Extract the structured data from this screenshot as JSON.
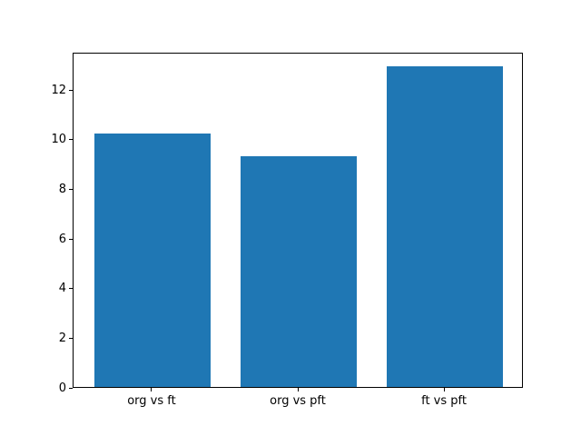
{
  "chart_data": {
    "type": "bar",
    "categories": [
      "org vs ft",
      "org vs pft",
      "ft vs pft"
    ],
    "values": [
      10.2,
      9.3,
      12.9
    ],
    "title": "",
    "xlabel": "",
    "ylabel": "",
    "yticks": [
      0,
      2,
      4,
      6,
      8,
      10,
      12
    ],
    "ylim": [
      0,
      13.5
    ],
    "xlim": [
      -0.54,
      2.54
    ],
    "bar_width": 0.8,
    "bar_color": "#1f77b4",
    "spine_color": "#000000",
    "background_color": "#ffffff",
    "grid": false,
    "legend": null
  }
}
